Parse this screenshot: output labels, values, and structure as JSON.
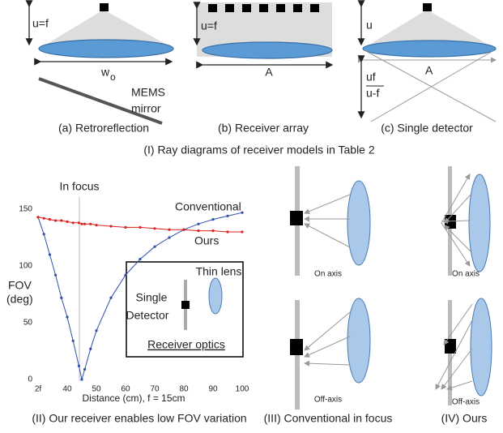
{
  "panel_a": {
    "u_label": "u=f",
    "width_label": "w",
    "width_sub": "o",
    "mirror_label": [
      "MEMS",
      "mirror"
    ],
    "caption": "(a) Retroreflection"
  },
  "panel_b": {
    "u_label": "u=f",
    "width_label": "A",
    "caption": "(b) Receiver array"
  },
  "panel_c": {
    "u_label": "u",
    "frac_top": "uf",
    "frac_bottom": "u-f",
    "width_label": "A",
    "caption": "(c) Single detector"
  },
  "caption_top": "(I) Ray diagrams of receiver models in Table 2",
  "chart_data": {
    "type": "line",
    "annotation": "In focus",
    "y_label": [
      "FOV",
      "(deg)"
    ],
    "x_label": "Distance (cm), f = 15cm",
    "x": [
      30,
      32,
      34,
      36,
      38,
      40,
      42,
      44,
      45,
      46,
      48,
      50,
      55,
      60,
      65,
      70,
      75,
      80,
      85,
      90,
      95,
      100
    ],
    "series": [
      {
        "name": "Conventional",
        "color": "#2e4fa8",
        "values": [
          143,
          128,
          110,
          92,
          72,
          55,
          34,
          12,
          0,
          9,
          27,
          43,
          72,
          92,
          106,
          117,
          125,
          132,
          137,
          141,
          144,
          147
        ]
      },
      {
        "name": "Ours",
        "color": "#e02020",
        "values": [
          143,
          142,
          141,
          140,
          140,
          139,
          138,
          138,
          137,
          137,
          137,
          136,
          135,
          134,
          134,
          133,
          132,
          132,
          131,
          131,
          130,
          130
        ]
      }
    ],
    "xlim": [
      30,
      100
    ],
    "xticks": [
      {
        "value": 30,
        "label": "2f"
      },
      40,
      50,
      60,
      70,
      80,
      90,
      100
    ],
    "ylim": [
      0,
      150
    ],
    "yticks": [
      0,
      50,
      100,
      150
    ],
    "inset": {
      "lens_label": "Thin lens",
      "detector_label": [
        "Single",
        "Detector"
      ],
      "title": "Receiver optics"
    },
    "caption": "(II) Our receiver enables low FOV variation"
  },
  "panel_iii": {
    "top_label": "On axis",
    "bottom_label": "Off-axis",
    "caption": "(III) Conventional in focus"
  },
  "panel_iv": {
    "top_label": "On axis",
    "bottom_label": "Off-axis",
    "caption": "(IV) Ours"
  }
}
